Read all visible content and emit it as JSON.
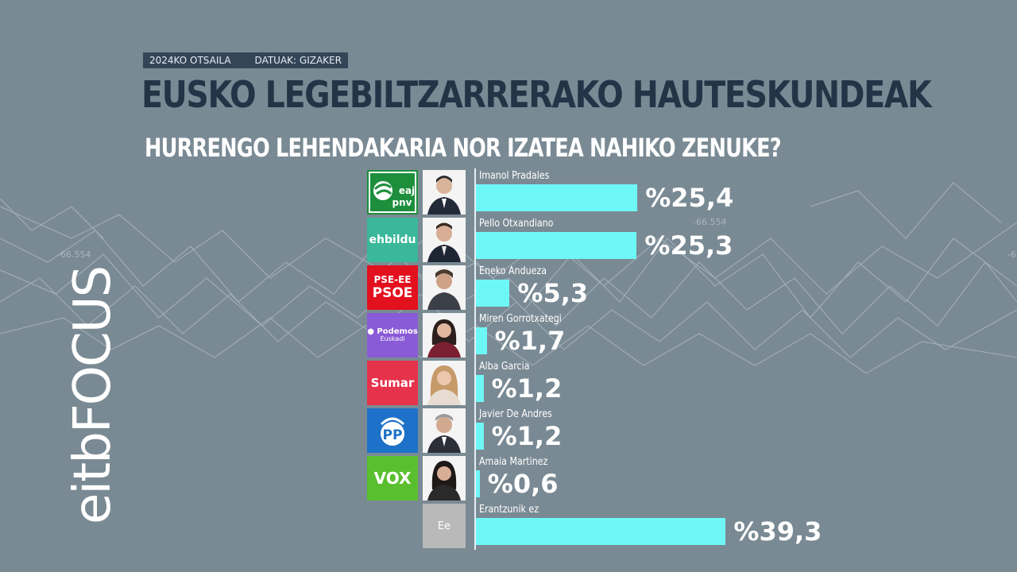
{
  "meta": {
    "date": "2024KO OTSAILA",
    "source": "DATUAK: GIZAKER"
  },
  "title": "EUSKO LEGEBILTZARRERAKO HAUTESKUNDEAK",
  "subtitle": "HURRENGO LEHENDAKARIA NOR IZATEA NAHIKO ZENUKE?",
  "brand": {
    "logo_text": "eitbFOCUS"
  },
  "background_labels": [
    "-66.554",
    "-66.554",
    "-6"
  ],
  "colors": {
    "background": "#7a8a94",
    "bar": "#6ef7f7",
    "title": "#243447",
    "meta_bar": "#344557"
  },
  "chart_data": {
    "type": "bar",
    "orientation": "horizontal",
    "categories": [
      "Imanol Pradales",
      "Pello Otxandiano",
      "Eneko Andueza",
      "Miren Gorrotxategi",
      "Alba Garcia",
      "Javier De Andres",
      "Amaia Martinez",
      "Erantzunik ez"
    ],
    "values": [
      25.4,
      25.3,
      5.3,
      1.7,
      1.2,
      1.2,
      0.6,
      39.3
    ],
    "value_labels": [
      "%25,4",
      "%25,3",
      "%5,3",
      "%1,7",
      "%1,2",
      "%1,2",
      "%0,6",
      "%39,3"
    ],
    "parties": [
      {
        "label": "eaj pnv",
        "icon": "eaj-pnv-logo",
        "color": "#1d8f3c"
      },
      {
        "label": "ehbildu",
        "icon": "ehbildu-logo",
        "color": "#3bb89a"
      },
      {
        "label": "PSE-EE PSOE",
        "icon": "pse-psoe-logo",
        "color": "#e3101e"
      },
      {
        "label": "Podemos Euskadi",
        "icon": "podemos-logo",
        "color": "#8a5bd6"
      },
      {
        "label": "Sumar",
        "icon": "sumar-logo",
        "color": "#e6324b"
      },
      {
        "label": "PP",
        "icon": "pp-logo",
        "color": "#1d71c8"
      },
      {
        "label": "VOX",
        "icon": "vox-logo",
        "color": "#5abf2e"
      },
      {
        "label": "Ee",
        "icon": "no-answer-placeholder",
        "color": "#b9b9b9"
      }
    ],
    "xlim": [
      0,
      45
    ],
    "grid": false,
    "legend": "none"
  }
}
